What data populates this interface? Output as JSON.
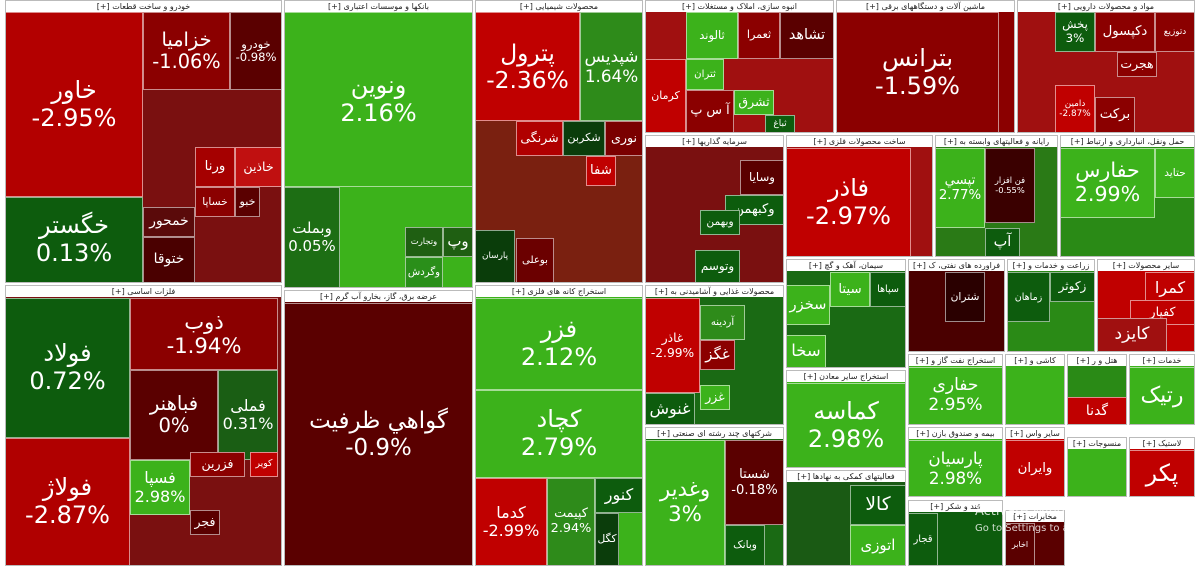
{
  "sectors": [
    {
      "title": "خودرو و ساخت قطعات [+]",
      "tiles": [
        {
          "label": "خاور",
          "change": "-2.95%"
        },
        {
          "label": "خگستر",
          "change": "0.13%"
        },
        {
          "label": "خزامیا",
          "change": "-1.06%"
        },
        {
          "label": "خودرو",
          "change": "-0.98%"
        },
        {
          "label": "ورنا"
        },
        {
          "label": "خاذین"
        },
        {
          "label": "خساپا"
        },
        {
          "label": "خبو"
        },
        {
          "label": "خمحور"
        },
        {
          "label": "ختوقا"
        }
      ]
    },
    {
      "title": "بانکها و موسسات اعتباری [+]",
      "tiles": [
        {
          "label": "ونوین",
          "change": "2.16%"
        },
        {
          "label": "وبملت",
          "change": "0.05%"
        },
        {
          "label": "وتجارت"
        },
        {
          "label": "وگردش"
        },
        {
          "label": "وپ"
        }
      ]
    },
    {
      "title": "محصولات شیمیایی [+]",
      "tiles": [
        {
          "label": "پترول",
          "change": "-2.36%"
        },
        {
          "label": "شپدیس",
          "change": "1.64%"
        },
        {
          "label": "شرنگی"
        },
        {
          "label": "شکربن"
        },
        {
          "label": "نوری"
        },
        {
          "label": "پارسان"
        },
        {
          "label": "بوعلی"
        },
        {
          "label": "شفا"
        }
      ]
    },
    {
      "title": "انبوه سازی، املاک و مستغلات [+]",
      "tiles": [
        {
          "label": "ثالوند"
        },
        {
          "label": "ثعمرا"
        },
        {
          "label": "تشاهد"
        },
        {
          "label": "ثتران"
        },
        {
          "label": "کرمان"
        },
        {
          "label": "آ س پ"
        },
        {
          "label": "ثشرق"
        },
        {
          "label": "ثباغ"
        }
      ]
    },
    {
      "title": "ماشین آلات و دستگاههای برقی [+]",
      "tiles": [
        {
          "label": "بترانس",
          "change": "-1.59%"
        }
      ]
    },
    {
      "title": "مواد و محصولات دارویی [+]",
      "tiles": [
        {
          "label": "دتوزیع"
        },
        {
          "label": "دکپسول"
        },
        {
          "label": "پخش",
          "change": "3%"
        },
        {
          "label": "هجرت"
        },
        {
          "label": "برکت"
        },
        {
          "label": "دامین",
          "change": "-2.87%"
        }
      ]
    },
    {
      "title": "فلزات اساسی [+]",
      "tiles": [
        {
          "label": "فولاد",
          "change": "0.72%"
        },
        {
          "label": "فولاژ",
          "change": "-2.87%"
        },
        {
          "label": "ذوب",
          "change": "-1.94%"
        },
        {
          "label": "فباهنر",
          "change": "0%"
        },
        {
          "label": "فملی",
          "change": "0.31%"
        },
        {
          "label": "فسپا",
          "change": "2.98%"
        },
        {
          "label": "فزرین"
        },
        {
          "label": "کویر"
        },
        {
          "label": "فجر"
        }
      ]
    },
    {
      "title": "عرضه برق، گاز، بخارو آب گرم [+]",
      "tiles": [
        {
          "label": "گواهي ظرفيت",
          "change": "-0.9%"
        }
      ]
    },
    {
      "title": "استخراج کانه های فلزی [+]",
      "tiles": [
        {
          "label": "فزر",
          "change": "2.12%"
        },
        {
          "label": "کچاد",
          "change": "2.79%"
        },
        {
          "label": "کدما",
          "change": "-2.99%"
        },
        {
          "label": "کپیمت",
          "change": "2.94%"
        },
        {
          "label": "کنور"
        },
        {
          "label": "کگل"
        }
      ]
    },
    {
      "title": "سرمایه گذاریها [+]",
      "tiles": [
        {
          "label": "وسایا"
        },
        {
          "label": "وکبهمن"
        },
        {
          "label": "وبهمن"
        },
        {
          "label": "وتوسم"
        }
      ]
    },
    {
      "title": "ساخت محصولات فلزی [+]",
      "tiles": [
        {
          "label": "فاذر",
          "change": "-2.97%"
        }
      ]
    },
    {
      "title": "رایانه و فعالیتهای وابسته به [+]",
      "tiles": [
        {
          "label": "تپسي",
          "change": "2.77%"
        },
        {
          "label": "فن افزار",
          "change": "-0.55%"
        },
        {
          "label": "آپ"
        }
      ]
    },
    {
      "title": "حمل ونقل، انبارداری و ارتباط [+]",
      "tiles": [
        {
          "label": "حتاید"
        },
        {
          "label": "حفارس",
          "change": "2.99%"
        }
      ]
    },
    {
      "title": "محصولات غذایی و آشامیدنی به [+]",
      "tiles": [
        {
          "label": "غاذر",
          "change": "-2.99%"
        },
        {
          "label": "آردینه"
        },
        {
          "label": "غگز"
        },
        {
          "label": "غنوش"
        },
        {
          "label": "غزر"
        }
      ]
    },
    {
      "title": "شرکتهای چند رشته ای صنعتی [+]",
      "tiles": [
        {
          "label": "وغدیر",
          "change": "3%"
        },
        {
          "label": "شستا",
          "change": "-0.18%"
        },
        {
          "label": "وبانک"
        }
      ]
    },
    {
      "title": "سیمان، آهک و گچ [+]",
      "tiles": [
        {
          "label": "سیتا"
        },
        {
          "label": "سپاها"
        },
        {
          "label": "سخزر"
        },
        {
          "label": "سخا"
        }
      ]
    },
    {
      "title": "استخراج سایر معادن [+]",
      "tiles": [
        {
          "label": "کماسه",
          "change": "2.98%"
        }
      ]
    },
    {
      "title": "فعالیتهای کمکی به نهادها [+]",
      "tiles": [
        {
          "label": "کالا"
        },
        {
          "label": "اتوزی"
        }
      ]
    },
    {
      "title": "فراورده های نفتی، ک [+]",
      "tiles": [
        {
          "label": "شتران"
        }
      ]
    },
    {
      "title": "زراعت و خدمات و [+]",
      "tiles": [
        {
          "label": "زکوثر"
        },
        {
          "label": "زماهان"
        }
      ]
    },
    {
      "title": "سایر محصولات [+]",
      "tiles": [
        {
          "label": "کمرا"
        },
        {
          "label": "کفپار"
        },
        {
          "label": "کایزد"
        }
      ]
    },
    {
      "title": "استخراج نفت گاز و [+]",
      "tiles": [
        {
          "label": "حفاری",
          "change": "2.95%"
        }
      ]
    },
    {
      "title": "کاشی و [+]",
      "tiles": []
    },
    {
      "title": "هتل و ر [+]",
      "tiles": [
        {
          "label": "گدنا"
        }
      ]
    },
    {
      "title": "خدمات [+]",
      "tiles": [
        {
          "label": "رتیک"
        }
      ]
    },
    {
      "title": "بیمه و صندوق بازن [+]",
      "tiles": [
        {
          "label": "پارسیان",
          "change": "2.98%"
        }
      ]
    },
    {
      "title": "سایر واس [+]",
      "tiles": [
        {
          "label": "وایران"
        }
      ]
    },
    {
      "title": "منسوجات [+]",
      "tiles": []
    },
    {
      "title": "لاستیک [+]",
      "tiles": [
        {
          "label": "پکر"
        }
      ]
    },
    {
      "title": "قند و شکر [+]",
      "tiles": [
        {
          "label": "قجار"
        }
      ]
    },
    {
      "title": "مخابرات [+]",
      "tiles": [
        {
          "label": "اخابر"
        }
      ]
    }
  ],
  "watermark": {
    "title": "Activate Windows",
    "text": "Go to Settings to activate Windows."
  }
}
